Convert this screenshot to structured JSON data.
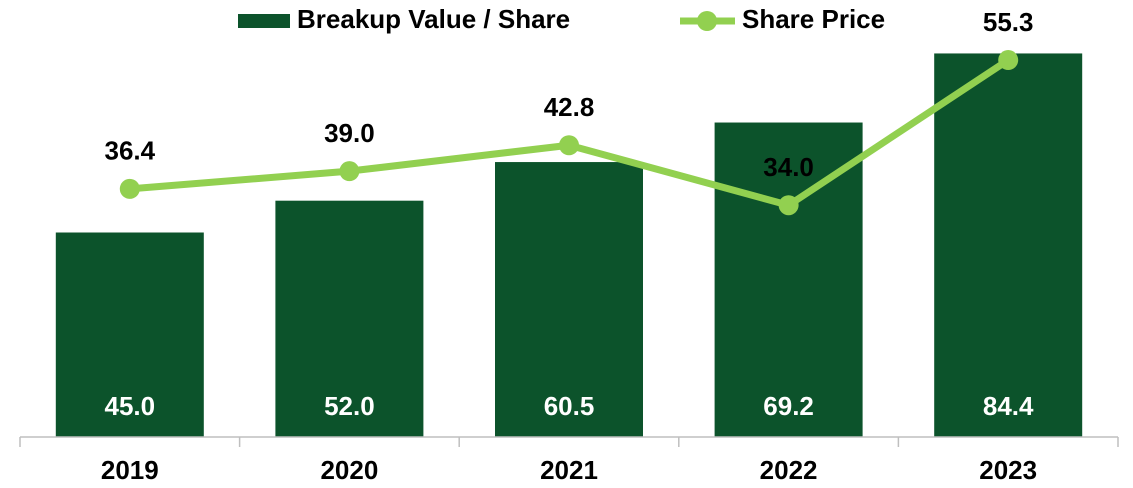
{
  "chart_data": {
    "type": "bar_line",
    "categories": [
      "2019",
      "2020",
      "2021",
      "2022",
      "2023"
    ],
    "series": [
      {
        "name": "Breakup Value / Share",
        "type": "bar",
        "color": "#0c532b",
        "values": [
          45.0,
          52.0,
          60.5,
          69.2,
          84.4
        ],
        "value_labels": [
          "45.0",
          "52.0",
          "60.5",
          "69.2",
          "84.4"
        ]
      },
      {
        "name": "Share Price",
        "type": "line",
        "axis": "y2",
        "color": "#92d050",
        "values": [
          36.4,
          39.0,
          42.8,
          34.0,
          55.3
        ],
        "value_labels": [
          "36.4",
          "39.0",
          "42.8",
          "34.0",
          "55.3"
        ]
      }
    ],
    "ylim": [
      0,
      90
    ],
    "y2lim": [
      0,
      60
    ],
    "legend": "top"
  }
}
